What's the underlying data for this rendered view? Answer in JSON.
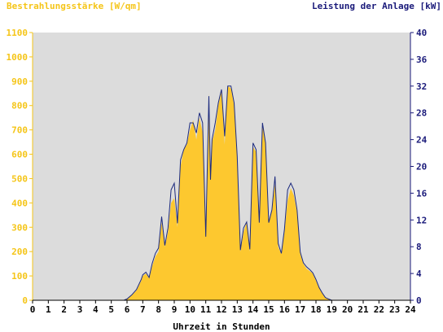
{
  "chart_data": {
    "type": "area",
    "left_axis_label": "Bestrahlungsstärke [W/qm]",
    "right_axis_label": "Leistung der Anlage [kW]",
    "xlabel": "Uhrzeit in Stunden",
    "xlim": [
      0,
      24
    ],
    "ylim_left": [
      0,
      1100
    ],
    "ylim_right": [
      0,
      40
    ],
    "x_ticks": [
      "0",
      "1",
      "2",
      "3",
      "4",
      "5",
      "6",
      "7",
      "8",
      "9",
      "10",
      "11",
      "12",
      "13",
      "14",
      "15",
      "16",
      "17",
      "18",
      "19",
      "20",
      "21",
      "22",
      "23",
      "24"
    ],
    "y_left_ticks": [
      "0",
      "100",
      "200",
      "300",
      "400",
      "500",
      "600",
      "700",
      "800",
      "900",
      "1000",
      "1100"
    ],
    "y_right_ticks": [
      "0",
      "4",
      "8",
      "12",
      "16",
      "20",
      "24",
      "28",
      "32",
      "36",
      "40"
    ],
    "grid": false,
    "colors": {
      "irradiance_fill": "#fdc82f",
      "power_line": "#1c2a7e",
      "plot_background": "#dcdcdc",
      "left_axis_text": "#f5c518",
      "right_axis_text": "#1a1a7a"
    },
    "series": [
      {
        "kind": "irradiance_area",
        "x": [
          0,
          5.8,
          6.0,
          6.3,
          6.6,
          6.9,
          7.0,
          7.2,
          7.4,
          7.6,
          7.8,
          8.0,
          8.2,
          8.4,
          8.6,
          8.8,
          9.0,
          9.2,
          9.4,
          9.6,
          9.8,
          10.0,
          10.2,
          10.4,
          10.6,
          10.8,
          11.0,
          11.2,
          11.3,
          11.4,
          11.6,
          11.8,
          12.0,
          12.2,
          12.4,
          12.6,
          12.8,
          13.0,
          13.2,
          13.4,
          13.6,
          13.8,
          14.0,
          14.2,
          14.4,
          14.6,
          14.8,
          15.0,
          15.2,
          15.4,
          15.6,
          15.8,
          16.0,
          16.2,
          16.4,
          16.6,
          16.8,
          17.0,
          17.2,
          17.4,
          17.6,
          17.8,
          18.0,
          18.2,
          18.4,
          18.6,
          18.8,
          19.0,
          19.3,
          24
        ],
        "values": [
          0,
          0,
          5,
          20,
          40,
          80,
          100,
          110,
          90,
          140,
          180,
          200,
          320,
          220,
          280,
          400,
          420,
          300,
          550,
          620,
          640,
          700,
          740,
          660,
          750,
          690,
          260,
          850,
          500,
          650,
          700,
          800,
          860,
          640,
          880,
          870,
          800,
          580,
          200,
          280,
          320,
          200,
          630,
          610,
          320,
          720,
          650,
          320,
          370,
          480,
          220,
          190,
          280,
          410,
          460,
          430,
          360,
          190,
          150,
          130,
          120,
          110,
          80,
          50,
          30,
          10,
          5,
          0,
          0,
          0
        ]
      },
      {
        "kind": "power_line",
        "x": [
          0,
          5.8,
          6.0,
          6.3,
          6.6,
          6.9,
          7.0,
          7.2,
          7.4,
          7.6,
          7.8,
          8.0,
          8.2,
          8.4,
          8.6,
          8.8,
          9.0,
          9.2,
          9.4,
          9.6,
          9.8,
          10.0,
          10.2,
          10.4,
          10.6,
          10.8,
          11.0,
          11.2,
          11.3,
          11.4,
          11.6,
          11.8,
          12.0,
          12.2,
          12.4,
          12.6,
          12.8,
          13.0,
          13.2,
          13.4,
          13.6,
          13.8,
          14.0,
          14.2,
          14.4,
          14.6,
          14.8,
          15.0,
          15.2,
          15.4,
          15.6,
          15.8,
          16.0,
          16.2,
          16.4,
          16.6,
          16.8,
          17.0,
          17.2,
          17.4,
          17.6,
          17.8,
          18.0,
          18.2,
          18.4,
          18.6,
          18.8,
          19.0,
          19.3,
          24
        ],
        "values": [
          0,
          0,
          0.2,
          0.8,
          1.6,
          3.1,
          3.8,
          4.2,
          3.4,
          5.5,
          7.0,
          7.8,
          12.5,
          8.2,
          10.8,
          16.5,
          17.5,
          11.5,
          21.0,
          22.5,
          23.5,
          26.5,
          26.5,
          25.0,
          28.0,
          26.5,
          9.5,
          30.5,
          18.0,
          24.0,
          26.5,
          29.5,
          31.5,
          24.5,
          32.0,
          32.0,
          29.5,
          21.5,
          7.5,
          10.8,
          11.7,
          7.6,
          23.5,
          22.5,
          11.6,
          26.5,
          23.5,
          11.6,
          13.5,
          18.5,
          8.5,
          7.0,
          10.6,
          16.5,
          17.5,
          16.5,
          13.5,
          7.2,
          5.6,
          5.0,
          4.6,
          4.1,
          3.1,
          1.9,
          1.1,
          0.4,
          0.2,
          0,
          0,
          0
        ]
      }
    ]
  }
}
